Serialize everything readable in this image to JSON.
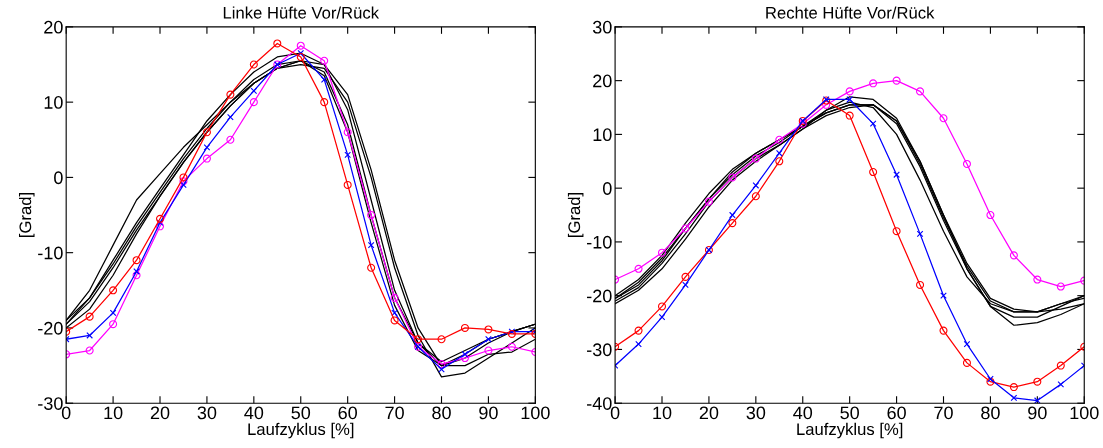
{
  "chart_data": [
    {
      "type": "line",
      "title": "Linke Hüfte Vor/Rück",
      "xlabel": "Laufzyklus [%]",
      "ylabel": "[Grad]",
      "x": [
        0,
        5,
        10,
        15,
        20,
        25,
        30,
        35,
        40,
        45,
        50,
        55,
        60,
        65,
        70,
        75,
        80,
        85,
        90,
        95,
        100
      ],
      "xlim": [
        0,
        100
      ],
      "xticks": [
        0,
        10,
        20,
        30,
        40,
        50,
        60,
        70,
        80,
        90,
        100
      ],
      "ylim": [
        -30,
        20
      ],
      "yticks": [
        -30,
        -20,
        -10,
        0,
        10,
        20
      ],
      "grid": false,
      "legend": false,
      "series": [
        {
          "color": "#000000",
          "marker": "none",
          "values": [
            -19,
            -15,
            -9,
            -3,
            0.5,
            4,
            7,
            10,
            12.5,
            14.5,
            15.5,
            14,
            7,
            -5,
            -16,
            -22,
            -24.5,
            -23,
            -21.5,
            -20.5,
            -19.5
          ]
        },
        {
          "color": "#000000",
          "marker": "none",
          "values": [
            -19.5,
            -16,
            -11,
            -6,
            -1.5,
            3,
            7.5,
            11,
            14,
            16,
            16.5,
            15,
            9,
            -3,
            -15,
            -22,
            -25,
            -24,
            -22,
            -20.5,
            -19.5
          ]
        },
        {
          "color": "#000000",
          "marker": "none",
          "values": [
            -20,
            -17.5,
            -13,
            -7.5,
            -2.5,
            2,
            6,
            9.5,
            12.5,
            14.5,
            15,
            14.5,
            10,
            0,
            -12,
            -21,
            -26.5,
            -26,
            -24,
            -22,
            -20
          ]
        },
        {
          "color": "#000000",
          "marker": "none",
          "values": [
            -19.5,
            -16.5,
            -12,
            -7,
            -2.5,
            2,
            6,
            9.5,
            12.5,
            14.5,
            15.5,
            15,
            11,
            1,
            -11,
            -20,
            -25,
            -25,
            -23.5,
            -23.2,
            -21.5
          ]
        },
        {
          "color": "#000000",
          "marker": "none",
          "values": [
            -19,
            -16,
            -11.5,
            -6.5,
            -2,
            2.5,
            6.5,
            10,
            13,
            15,
            15.5,
            13.5,
            6,
            -6,
            -17,
            -23,
            -25,
            -23.5,
            -21.5,
            -20.5,
            -19.5
          ]
        },
        {
          "color": "#ff00ff",
          "marker": "circle",
          "values": [
            -23.5,
            -23,
            -19.5,
            -13,
            -6.5,
            -0.5,
            2.5,
            5,
            10,
            15,
            17.5,
            15.5,
            6,
            -5,
            -16,
            -22.5,
            -24.8,
            -24,
            -23,
            -22.5,
            -23.2
          ]
        },
        {
          "color": "#0000ff",
          "marker": "cross",
          "values": [
            -21.5,
            -21,
            -18,
            -12.5,
            -6,
            -1,
            4,
            8,
            11.5,
            15,
            16.5,
            13,
            3,
            -9,
            -18,
            -22.5,
            -25.5,
            -23.5,
            -21.5,
            -20.5,
            -20.5
          ]
        },
        {
          "color": "#ff0000",
          "marker": "circle",
          "values": [
            -20.5,
            -18.5,
            -15,
            -11,
            -5.5,
            0,
            6,
            11,
            15,
            17.8,
            16,
            10,
            -1,
            -12,
            -19,
            -21.5,
            -21.5,
            -20,
            -20.2,
            -20.8,
            -20.8
          ]
        }
      ]
    },
    {
      "type": "line",
      "title": "Rechte Hüfte Vor/Rück",
      "xlabel": "Laufzyklus [%]",
      "ylabel": "[Grad]",
      "x": [
        0,
        5,
        10,
        15,
        20,
        25,
        30,
        35,
        40,
        45,
        50,
        55,
        60,
        65,
        70,
        75,
        80,
        85,
        90,
        95,
        100
      ],
      "xlim": [
        0,
        100
      ],
      "xticks": [
        0,
        10,
        20,
        30,
        40,
        50,
        60,
        70,
        80,
        90,
        100
      ],
      "ylim": [
        -40,
        30
      ],
      "yticks": [
        -40,
        -30,
        -20,
        -10,
        0,
        10,
        20,
        30
      ],
      "grid": false,
      "legend": false,
      "series": [
        {
          "color": "#000000",
          "marker": "none",
          "values": [
            -20,
            -17,
            -12.5,
            -6.5,
            -1,
            3.5,
            6.5,
            9,
            11.5,
            14,
            15.5,
            15.5,
            12,
            4,
            -6,
            -15,
            -22,
            -24,
            -24,
            -22,
            -20
          ]
        },
        {
          "color": "#000000",
          "marker": "none",
          "values": [
            -21,
            -18.5,
            -14,
            -8.5,
            -2.5,
            2,
            5.5,
            8,
            11,
            14.5,
            17,
            16.5,
            13,
            5,
            -5,
            -14,
            -20.5,
            -22.5,
            -23,
            -22.5,
            -21.5
          ]
        },
        {
          "color": "#000000",
          "marker": "none",
          "values": [
            -21.5,
            -19,
            -15,
            -9.5,
            -3.5,
            1.5,
            5,
            8,
            11,
            13.5,
            15,
            15.5,
            12.5,
            5,
            -5,
            -15,
            -22,
            -25.5,
            -25,
            -23.5,
            -21.5
          ]
        },
        {
          "color": "#000000",
          "marker": "none",
          "values": [
            -20.5,
            -18,
            -13.5,
            -7.5,
            -2,
            2.5,
            6,
            8.5,
            11.5,
            14.5,
            16,
            15,
            10,
            1.5,
            -8,
            -16.5,
            -21.5,
            -23,
            -23,
            -21.5,
            -20.5
          ]
        },
        {
          "color": "#000000",
          "marker": "none",
          "values": [
            -20.5,
            -17.5,
            -13,
            -7.5,
            -2,
            3,
            6.5,
            9,
            11.5,
            14,
            15.5,
            15.5,
            12.5,
            4.5,
            -5.5,
            -14.5,
            -21,
            -23,
            -23,
            -21.5,
            -20
          ]
        },
        {
          "color": "#ff00ff",
          "marker": "circle",
          "values": [
            -17,
            -15,
            -12,
            -7.5,
            -2.5,
            2,
            5.5,
            9,
            12,
            15.5,
            18,
            19.5,
            20,
            18,
            13,
            4.5,
            -5,
            -12.5,
            -17,
            -18.3,
            -17.2
          ]
        },
        {
          "color": "#ff0000",
          "marker": "circle",
          "values": [
            -29.5,
            -26.5,
            -22,
            -16.5,
            -11.5,
            -6.5,
            -1.5,
            5,
            12.5,
            16.3,
            13.5,
            3,
            -8,
            -18,
            -26.5,
            -32.5,
            -36,
            -37,
            -36,
            -33,
            -29.5
          ]
        },
        {
          "color": "#0000ff",
          "marker": "cross",
          "values": [
            -33,
            -29,
            -24,
            -18,
            -11.5,
            -5,
            0.5,
            6.5,
            12.5,
            16.5,
            16.5,
            12,
            2.5,
            -8.5,
            -20,
            -29,
            -35.5,
            -39,
            -39.5,
            -36.5,
            -33
          ]
        }
      ]
    }
  ]
}
